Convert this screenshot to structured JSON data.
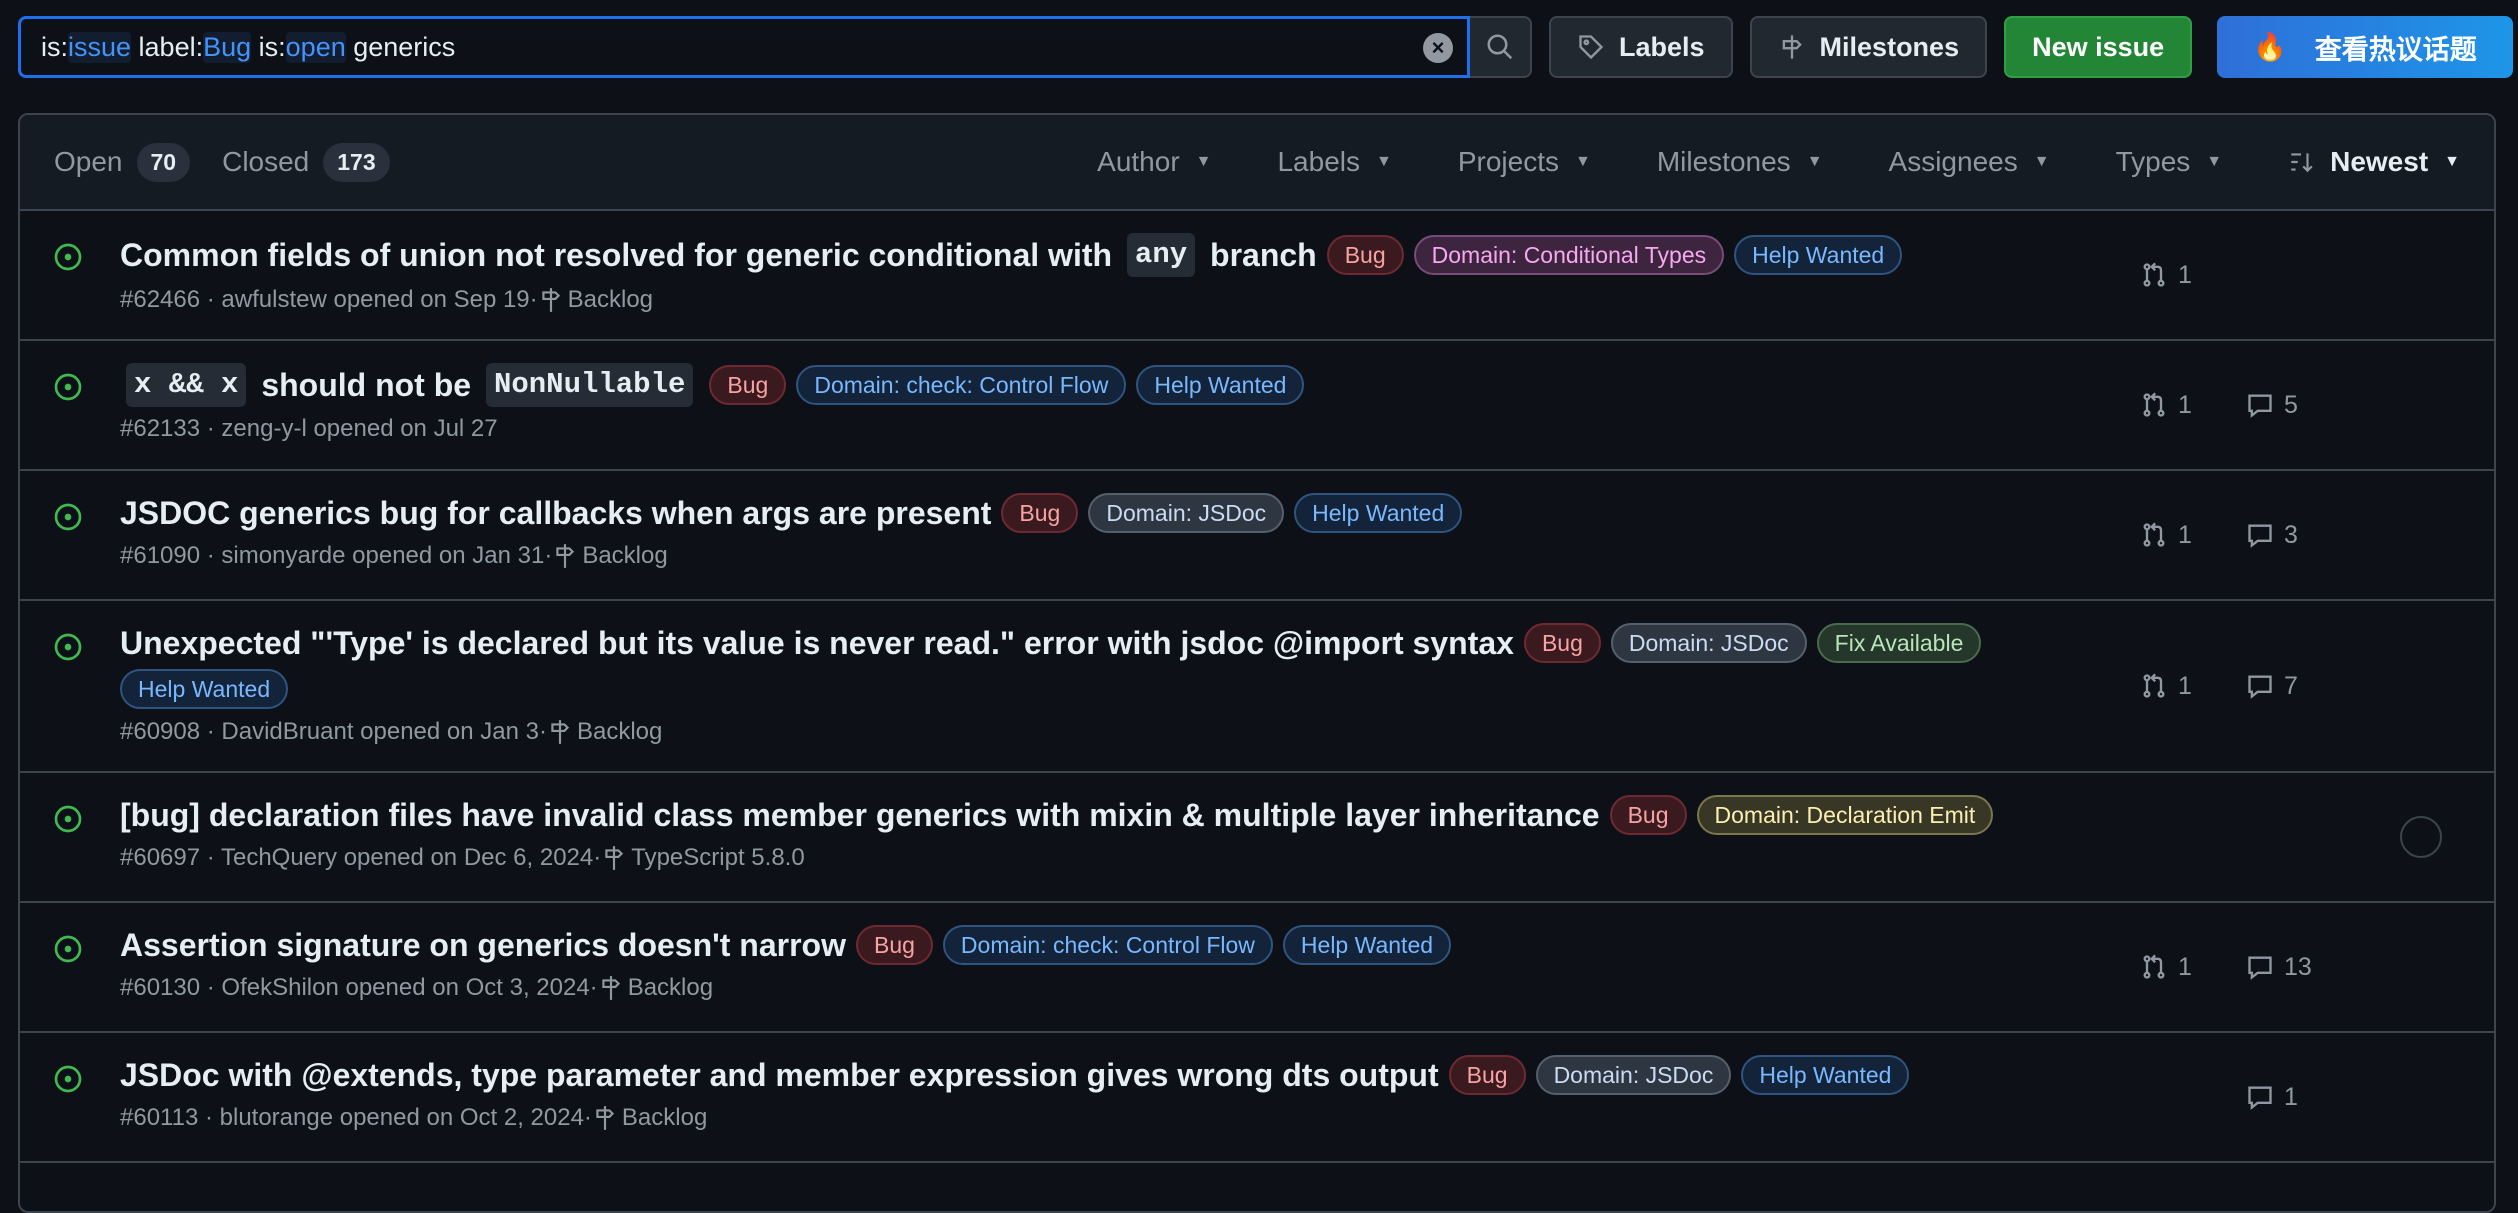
{
  "search": {
    "tokens": [
      {
        "k": "is:",
        "v": "issue"
      },
      {
        "k": " label:",
        "v": "Bug"
      },
      {
        "k": " is:",
        "v": "open"
      },
      {
        "k": " generics",
        "v": ""
      }
    ]
  },
  "toolbar": {
    "labels": "Labels",
    "milestones": "Milestones",
    "new_issue": "New issue",
    "hot_topics": "查看热议话题",
    "hot_icon": "🔥"
  },
  "header": {
    "open_label": "Open",
    "open_count": "70",
    "closed_label": "Closed",
    "closed_count": "173",
    "filters": [
      "Author",
      "Labels",
      "Projects",
      "Milestones",
      "Assignees",
      "Types"
    ],
    "sort": "Newest"
  },
  "colors": {
    "accent": "#1f6feb",
    "open": "#3fb950",
    "green_btn": "#238636"
  },
  "label_styles": {
    "Bug": {
      "bg": "#3b1a1f",
      "border": "#6e2a30",
      "fg": "#f8a3a3"
    },
    "Domain: Conditional Types": {
      "bg": "#3d2540",
      "border": "#7a4a78",
      "fg": "#f7a8ef"
    },
    "Help Wanted": {
      "bg": "#132339",
      "border": "#2f5480",
      "fg": "#79b8ff"
    },
    "Domain: check: Control Flow": {
      "bg": "#132339",
      "border": "#2f5480",
      "fg": "#79b8ff"
    },
    "Domain: JSDoc": {
      "bg": "#2e3641",
      "border": "#56606c",
      "fg": "#cadcf4"
    },
    "Fix Available": {
      "bg": "#25362a",
      "border": "#4a6a4e",
      "fg": "#b8e5ba"
    },
    "Domain: Declaration Emit": {
      "bg": "#383726",
      "border": "#7a7650",
      "fg": "#fcefb2"
    }
  },
  "issues": [
    {
      "title": [
        {
          "t": "Common fields of union not resolved for generic conditional with "
        },
        {
          "t": "any",
          "code": true
        },
        {
          "t": " branch"
        }
      ],
      "labels": [
        "Bug",
        "Domain: Conditional Types",
        "Help Wanted"
      ],
      "number": "#62466",
      "meta": " · awfulstew opened on Sep 19·",
      "milestone": "Backlog",
      "prs": "1",
      "comments": ""
    },
    {
      "title": [
        {
          "t": "x && x",
          "code": true
        },
        {
          "t": " should not be "
        },
        {
          "t": "NonNullable",
          "code": true
        }
      ],
      "labels": [
        "Bug",
        "Domain: check: Control Flow",
        "Help Wanted"
      ],
      "number": "#62133",
      "meta": " · zeng-y-l opened on Jul 27",
      "milestone": "",
      "prs": "1",
      "comments": "5"
    },
    {
      "title": [
        {
          "t": "JSDOC generics bug for callbacks when args are present"
        }
      ],
      "labels": [
        "Bug",
        "Domain: JSDoc",
        "Help Wanted"
      ],
      "number": "#61090",
      "meta": " · simonyarde opened on Jan 31·",
      "milestone": "Backlog",
      "prs": "1",
      "comments": "3"
    },
    {
      "title": [
        {
          "t": "Unexpected \"'Type' is declared but its value is never read.\" error with jsdoc @import syntax"
        }
      ],
      "labels": [
        "Bug",
        "Domain: JSDoc",
        "Fix Available",
        "Help Wanted"
      ],
      "number": "#60908",
      "meta": " · DavidBruant opened on Jan 3·",
      "milestone": "Backlog",
      "prs": "1",
      "comments": "7"
    },
    {
      "title": [
        {
          "t": "[bug] declaration files have invalid class member generics with mixin & multiple layer inheritance"
        }
      ],
      "labels": [
        "Bug",
        "Domain: Declaration Emit"
      ],
      "number": "#60697",
      "meta": " · TechQuery opened on Dec 6, 2024·",
      "milestone": "TypeScript 5.8.0",
      "prs": "",
      "comments": "",
      "avatar": true
    },
    {
      "title": [
        {
          "t": "Assertion signature on generics doesn't narrow"
        }
      ],
      "labels": [
        "Bug",
        "Domain: check: Control Flow",
        "Help Wanted"
      ],
      "number": "#60130",
      "meta": " · OfekShilon opened on Oct 3, 2024·",
      "milestone": "Backlog",
      "prs": "1",
      "comments": "13"
    },
    {
      "title": [
        {
          "t": "JSDoc with @extends, type parameter and member expression gives wrong dts output"
        }
      ],
      "labels": [
        "Bug",
        "Domain: JSDoc",
        "Help Wanted"
      ],
      "number": "#60113",
      "meta": " · blutorange opened on Oct 2, 2024·",
      "milestone": "Backlog",
      "prs": "",
      "comments": "1"
    }
  ]
}
